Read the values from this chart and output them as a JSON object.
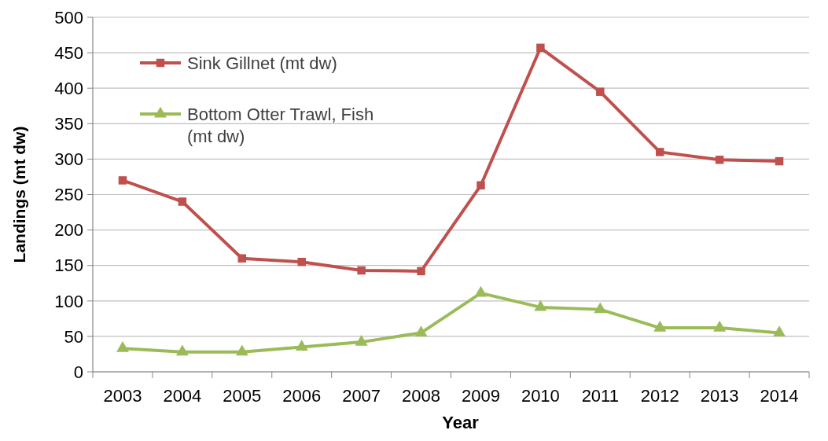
{
  "chart_data": {
    "type": "line",
    "xlabel": "Year",
    "ylabel": "Landings (mt dw)",
    "categories": [
      "2003",
      "2004",
      "2005",
      "2006",
      "2007",
      "2008",
      "2009",
      "2010",
      "2011",
      "2012",
      "2013",
      "2014"
    ],
    "series": [
      {
        "name": "Sink Gillnet (mt dw)",
        "color": "#c0504d",
        "marker": "square",
        "values": [
          270,
          240,
          160,
          155,
          143,
          142,
          263,
          457,
          395,
          310,
          299,
          297
        ]
      },
      {
        "name": "Bottom Otter Trawl, Fish (mt dw)",
        "color": "#9bbb59",
        "marker": "triangle",
        "values": [
          33,
          28,
          28,
          35,
          42,
          55,
          111,
          91,
          88,
          62,
          62,
          55
        ]
      }
    ],
    "ylim": [
      0,
      500
    ],
    "yticks": [
      0,
      50,
      100,
      150,
      200,
      250,
      300,
      350,
      400,
      450,
      500
    ],
    "grid": "y",
    "legend": "top left",
    "line_style": "solid"
  }
}
